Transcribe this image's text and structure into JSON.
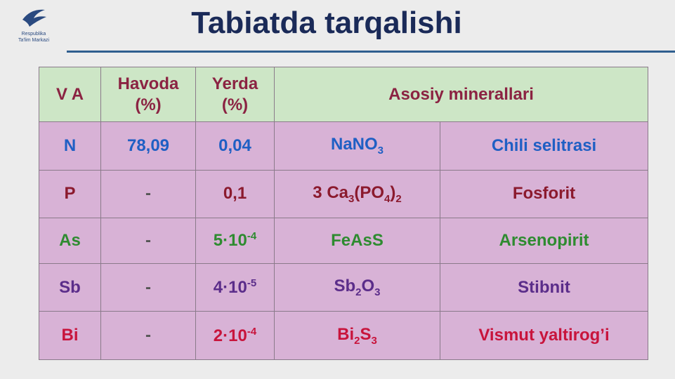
{
  "header": {
    "title": "Tabiatda tarqalishi",
    "logo_lines": [
      "Respublika",
      "Ta'lim Markazi"
    ]
  },
  "table": {
    "header": [
      [
        "V A"
      ],
      [
        "Havoda",
        "(%)"
      ],
      [
        "Yerda",
        "(%)"
      ],
      [
        "Asosiy minerallari"
      ]
    ],
    "rows": [
      {
        "element": "N",
        "air": "78,09",
        "earth": [
          {
            "text": "0,04"
          }
        ],
        "formula": [
          {
            "text": "NaNO"
          },
          {
            "sub": "3"
          }
        ],
        "mineral": "Chili selitrasi",
        "color": "#1f5fc4"
      },
      {
        "element": "P",
        "air": "-",
        "earth": [
          {
            "text": "0,1"
          }
        ],
        "formula": [
          {
            "text": "3 Ca"
          },
          {
            "sub": "3"
          },
          {
            "text": "(PO"
          },
          {
            "sub": "4"
          },
          {
            "text": ")"
          },
          {
            "sub": "2"
          }
        ],
        "mineral": "Fosforit",
        "color": "#8b1a2e"
      },
      {
        "element": "As",
        "air": "-",
        "earth": [
          {
            "text": "5·10"
          },
          {
            "sup": "-4"
          }
        ],
        "formula": [
          {
            "text": "FeAsS"
          }
        ],
        "mineral": "Arsenopirit",
        "color": "#2e8b30"
      },
      {
        "element": "Sb",
        "air": "-",
        "earth": [
          {
            "text": "4·10"
          },
          {
            "sup": "-5"
          }
        ],
        "formula": [
          {
            "text": "Sb"
          },
          {
            "sub": "2"
          },
          {
            "text": "O"
          },
          {
            "sub": "3"
          }
        ],
        "mineral": "Stibnit",
        "color": "#5b2d8a"
      },
      {
        "element": "Bi",
        "air": "-",
        "earth": [
          {
            "text": "2·10"
          },
          {
            "sup": "-4"
          }
        ],
        "formula": [
          {
            "text": "Bi"
          },
          {
            "sub": "2"
          },
          {
            "text": "S"
          },
          {
            "sub": "3"
          }
        ],
        "mineral": "Vismut yaltirog’i",
        "color": "#c8143c"
      }
    ]
  }
}
